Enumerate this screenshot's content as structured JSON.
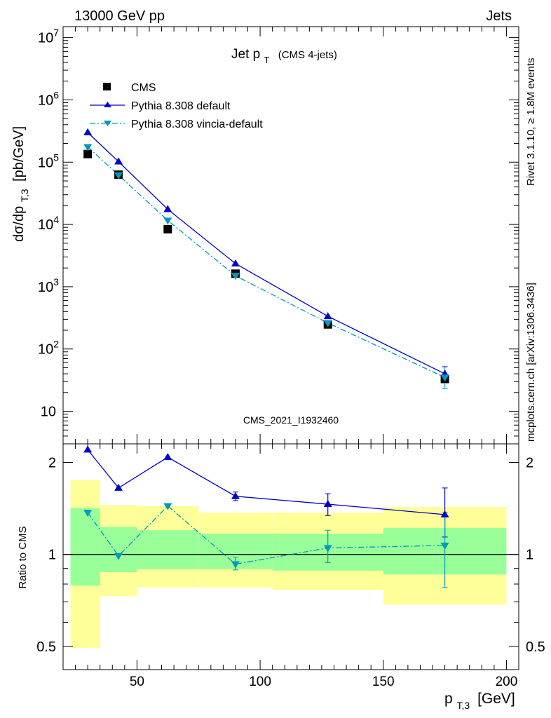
{
  "header": {
    "left": "13000 GeV pp",
    "right": "Jets"
  },
  "side": {
    "rivet": "Rivet 3.1.10, ≥ 1.8M events",
    "mcplots": "mcplots.cern.ch [arXiv:1306.3436]"
  },
  "chart_data": [
    {
      "type": "scatter",
      "title": "Jet p",
      "title_sub": "T",
      "title_suffix": "(CMS 4-jets)",
      "watermark": "CMS_2021_I1932460",
      "ylabel_main": "dσ/dp",
      "ylabel_sub": "T,3",
      "ylabel_unit": "[pb/GeV]",
      "y_scale": "log",
      "ylim": [
        3,
        15000000
      ],
      "x_ticks": [
        50,
        100,
        150,
        200
      ],
      "y_ticks": [
        {
          "value": 10,
          "base": "10",
          "exp": ""
        },
        {
          "value": 100,
          "base": "10",
          "exp": "2"
        },
        {
          "value": 1000,
          "base": "10",
          "exp": "3"
        },
        {
          "value": 10000,
          "base": "10",
          "exp": "4"
        },
        {
          "value": 100000,
          "base": "10",
          "exp": "5"
        },
        {
          "value": 1000000,
          "base": "10",
          "exp": "6"
        },
        {
          "value": 10000000,
          "base": "10",
          "exp": "7"
        }
      ],
      "legend": [
        "CMS",
        "Pythia 8.308 default",
        "Pythia 8.308 vincia-default"
      ],
      "legend_position": "top-left",
      "x": [
        30,
        42.5,
        62.5,
        90,
        127.5,
        175
      ],
      "series": [
        {
          "name": "CMS",
          "marker": "square",
          "color": "#000000",
          "values": [
            135000,
            63000,
            8400,
            1620,
            248,
            33
          ]
        },
        {
          "name": "Pythia 8.308 default",
          "marker": "triangle-up",
          "line": "solid",
          "color": "#0000cc",
          "values": [
            300000,
            102000,
            17500,
            2350,
            335,
            40
          ]
        },
        {
          "name": "Pythia 8.308 vincia-default",
          "marker": "triangle-down",
          "line": "dashdot",
          "color": "#0099bb",
          "values": [
            176000,
            62000,
            11600,
            1500,
            262,
            35
          ]
        }
      ],
      "errors": {
        "x": [
          175
        ],
        "low": [
          23
        ],
        "high": [
          52
        ]
      }
    },
    {
      "type": "line",
      "ylabel": "Ratio to CMS",
      "xlabel_main": "p",
      "xlabel_sub": "T,3",
      "xlabel_unit": "[GeV]",
      "xlim": [
        20,
        205
      ],
      "ylim": [
        0.42,
        2.3
      ],
      "y_scale": "log",
      "x_ticks": [
        50,
        100,
        150,
        200
      ],
      "y_ticks": [
        {
          "value": 0.5,
          "label": "0.5"
        },
        {
          "value": 1,
          "label": "1"
        },
        {
          "value": 2,
          "label": "2"
        }
      ],
      "bins": [
        {
          "x0": 23,
          "x1": 35,
          "green_lo": 0.79,
          "green_hi": 1.42,
          "yellow_lo": 0.495,
          "yellow_hi": 1.75
        },
        {
          "x0": 35,
          "x1": 50,
          "green_lo": 0.875,
          "green_hi": 1.23,
          "yellow_lo": 0.73,
          "yellow_hi": 1.45
        },
        {
          "x0": 50,
          "x1": 75,
          "green_lo": 0.895,
          "green_hi": 1.2,
          "yellow_lo": 0.78,
          "yellow_hi": 1.44
        },
        {
          "x0": 75,
          "x1": 105,
          "green_lo": 0.895,
          "green_hi": 1.17,
          "yellow_lo": 0.78,
          "yellow_hi": 1.37
        },
        {
          "x0": 105,
          "x1": 150,
          "green_lo": 0.885,
          "green_hi": 1.17,
          "yellow_lo": 0.765,
          "yellow_hi": 1.37
        },
        {
          "x0": 150,
          "x1": 200,
          "green_lo": 0.86,
          "green_hi": 1.22,
          "yellow_lo": 0.685,
          "yellow_hi": 1.43
        }
      ],
      "x": [
        30,
        42.5,
        62.5,
        90,
        127.5,
        175
      ],
      "series": [
        {
          "name": "Pythia 8.308 default",
          "color": "#0000cc",
          "values": [
            2.2,
            1.65,
            2.08,
            1.55,
            1.46,
            1.35
          ]
        },
        {
          "name": "Pythia 8.308 vincia-default",
          "color": "#0099bb",
          "values": [
            1.37,
            0.99,
            1.44,
            0.93,
            1.05,
            1.07
          ]
        }
      ],
      "errors": [
        {
          "x": 90,
          "low": 1.5,
          "high": 1.6,
          "series": 0
        },
        {
          "x": 127.5,
          "low": 1.34,
          "high": 1.58,
          "series": 0
        },
        {
          "x": 175,
          "low": 1.14,
          "high": 1.65,
          "series": 0
        },
        {
          "x": 90,
          "low": 0.89,
          "high": 0.98,
          "series": 1
        },
        {
          "x": 127.5,
          "low": 0.94,
          "high": 1.2,
          "series": 1
        },
        {
          "x": 175,
          "low": 0.78,
          "high": 1.37,
          "series": 1
        }
      ]
    }
  ]
}
